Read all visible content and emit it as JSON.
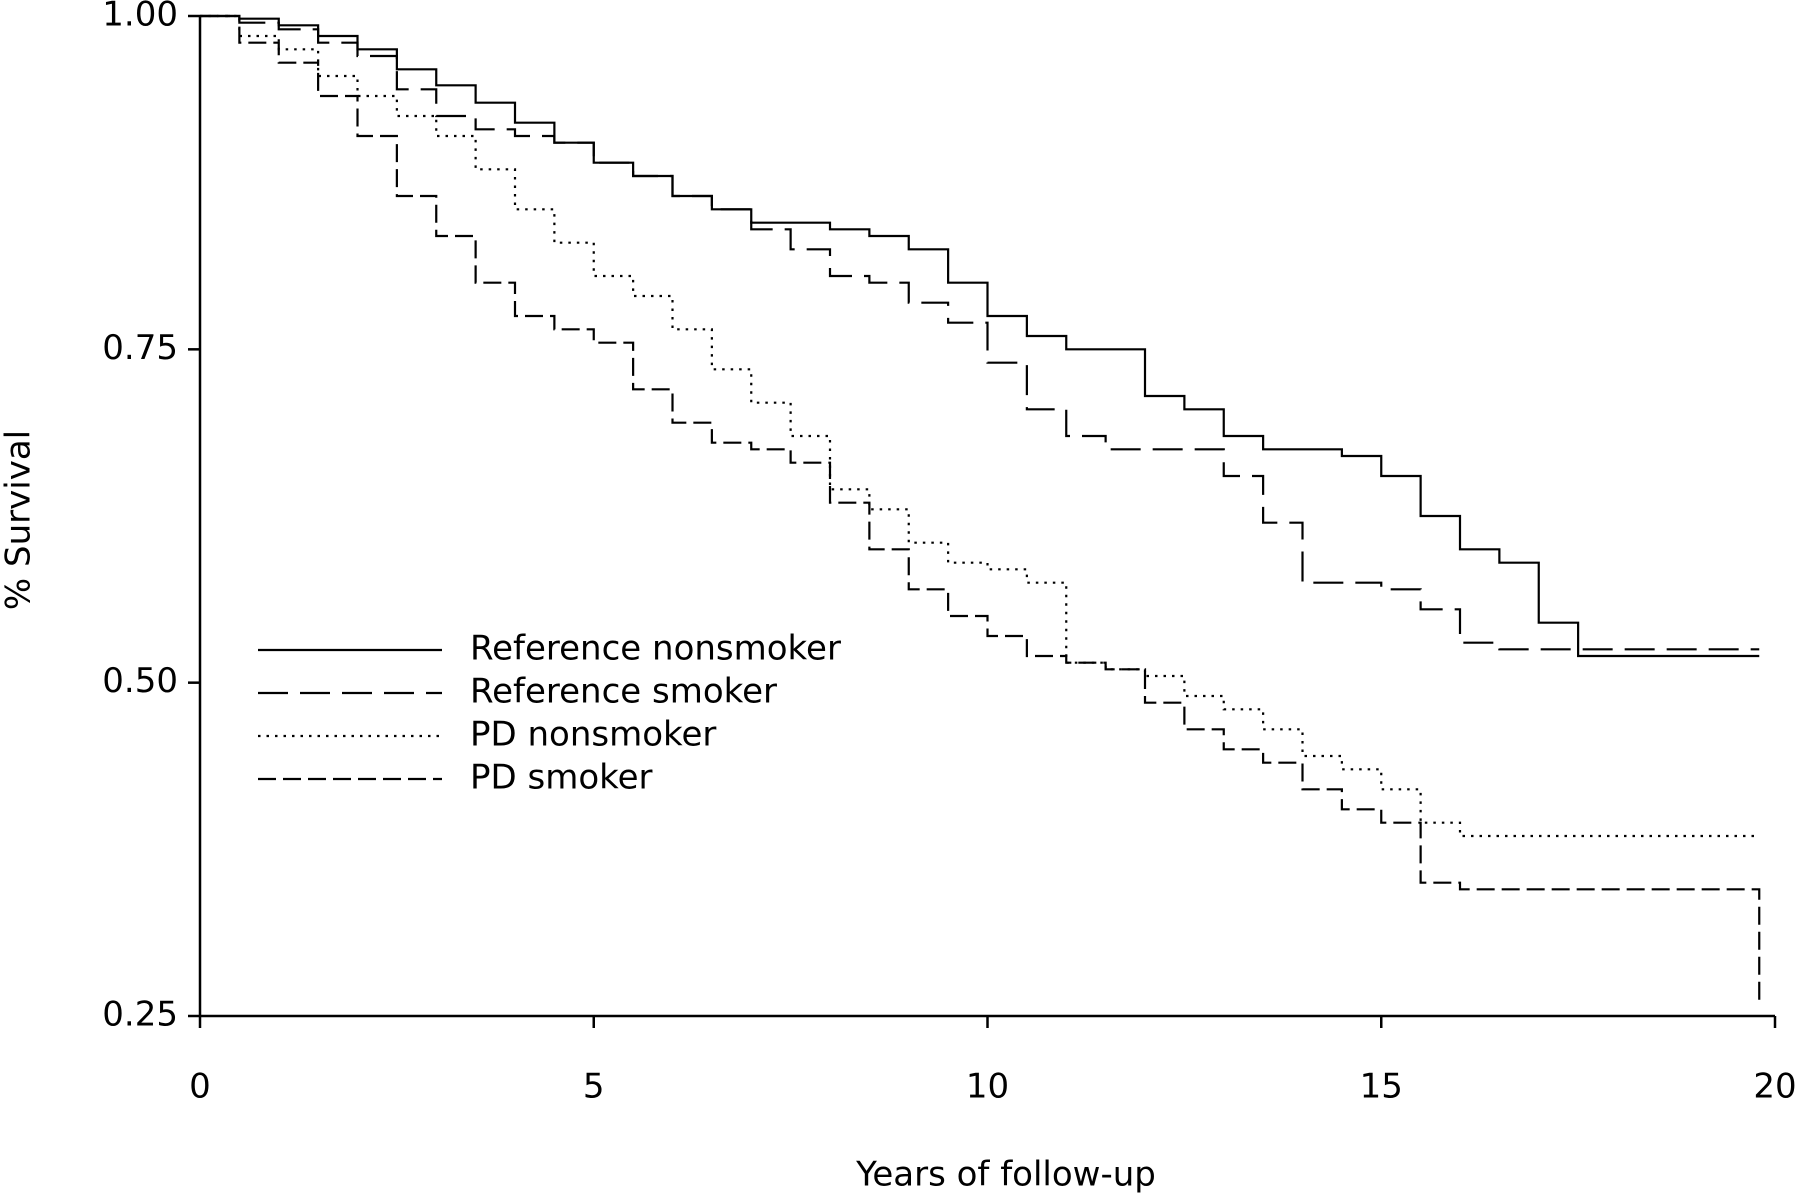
{
  "chart_data": {
    "type": "line",
    "drawstyle": "steps-post",
    "x_label": "Years of follow-up",
    "y_label": "% Survival",
    "x": [
      0,
      0.5,
      1,
      1.5,
      2,
      2.5,
      3,
      3.5,
      4,
      4.5,
      5,
      5.5,
      6,
      6.5,
      7,
      7.5,
      8,
      8.5,
      9,
      9.5,
      10,
      10.5,
      11,
      11.5,
      12,
      12.5,
      13,
      13.5,
      14,
      14.5,
      15,
      15.5,
      16,
      16.5,
      17,
      17.5,
      18,
      18.5,
      19,
      19.5,
      19.8
    ],
    "xlim": [
      0,
      20
    ],
    "xticks": [
      0,
      5,
      10,
      15,
      20
    ],
    "ylim": [
      0.25,
      1.0
    ],
    "yticks": [
      {
        "value": 0.25,
        "label": "0.25"
      },
      {
        "value": 0.5,
        "label": "0.50"
      },
      {
        "value": 0.75,
        "label": "0.75"
      },
      {
        "value": 1.0,
        "label": "1.00"
      }
    ],
    "grid": false,
    "legend": "lower-left",
    "series": [
      {
        "name": "Reference nonsmoker",
        "color": "#000000",
        "linestyle": "solid",
        "values": [
          1.0,
          0.998,
          0.993,
          0.985,
          0.975,
          0.96,
          0.948,
          0.935,
          0.92,
          0.905,
          0.89,
          0.88,
          0.865,
          0.855,
          0.845,
          0.845,
          0.84,
          0.835,
          0.825,
          0.8,
          0.775,
          0.76,
          0.75,
          0.75,
          0.715,
          0.705,
          0.685,
          0.675,
          0.675,
          0.67,
          0.655,
          0.625,
          0.6,
          0.59,
          0.545,
          0.52,
          0.52,
          0.52,
          0.52,
          0.52,
          0.52
        ]
      },
      {
        "name": "Reference smoker",
        "color": "#000000",
        "linestyle": "longdash",
        "values": [
          1.0,
          0.995,
          0.99,
          0.98,
          0.97,
          0.945,
          0.925,
          0.915,
          0.91,
          0.905,
          0.89,
          0.88,
          0.865,
          0.855,
          0.84,
          0.825,
          0.805,
          0.8,
          0.785,
          0.77,
          0.74,
          0.705,
          0.685,
          0.675,
          0.675,
          0.675,
          0.655,
          0.62,
          0.575,
          0.575,
          0.57,
          0.555,
          0.53,
          0.525,
          0.525,
          0.525,
          0.525,
          0.525,
          0.525,
          0.525,
          0.525
        ]
      },
      {
        "name": "PD nonsmoker",
        "color": "#000000",
        "linestyle": "dotted",
        "values": [
          1.0,
          0.985,
          0.975,
          0.955,
          0.94,
          0.925,
          0.91,
          0.885,
          0.855,
          0.83,
          0.805,
          0.79,
          0.765,
          0.735,
          0.71,
          0.685,
          0.645,
          0.63,
          0.605,
          0.59,
          0.585,
          0.575,
          0.515,
          0.51,
          0.505,
          0.49,
          0.48,
          0.465,
          0.445,
          0.435,
          0.42,
          0.395,
          0.385,
          0.385,
          0.385,
          0.385,
          0.385,
          0.385,
          0.385,
          0.385,
          0.385
        ]
      },
      {
        "name": "PD smoker",
        "color": "#000000",
        "linestyle": "dashed",
        "values": [
          1.0,
          0.98,
          0.965,
          0.94,
          0.91,
          0.865,
          0.835,
          0.8,
          0.775,
          0.765,
          0.755,
          0.72,
          0.695,
          0.68,
          0.675,
          0.665,
          0.635,
          0.6,
          0.57,
          0.55,
          0.535,
          0.52,
          0.515,
          0.51,
          0.485,
          0.465,
          0.45,
          0.44,
          0.42,
          0.405,
          0.395,
          0.35,
          0.345,
          0.345,
          0.345,
          0.345,
          0.345,
          0.345,
          0.345,
          0.345,
          0.26
        ]
      }
    ]
  }
}
